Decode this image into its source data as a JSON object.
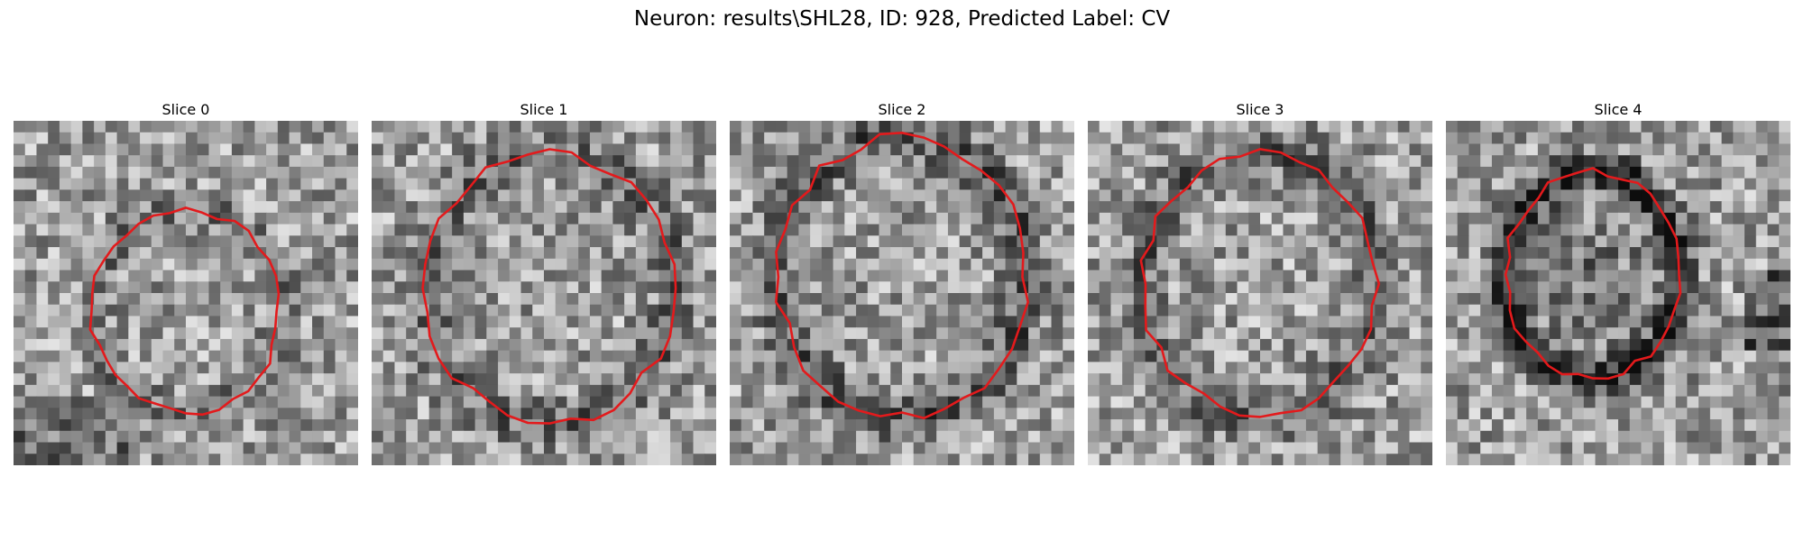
{
  "figure": {
    "title": "Neuron: results\\SHL28, ID: 928, Predicted Label: CV",
    "contour_color": "#e31a1c",
    "colormap": "gray"
  },
  "panels": [
    {
      "title": "Slice 0"
    },
    {
      "title": "Slice 1"
    },
    {
      "title": "Slice 2"
    },
    {
      "title": "Slice 3"
    },
    {
      "title": "Slice 4"
    }
  ]
}
